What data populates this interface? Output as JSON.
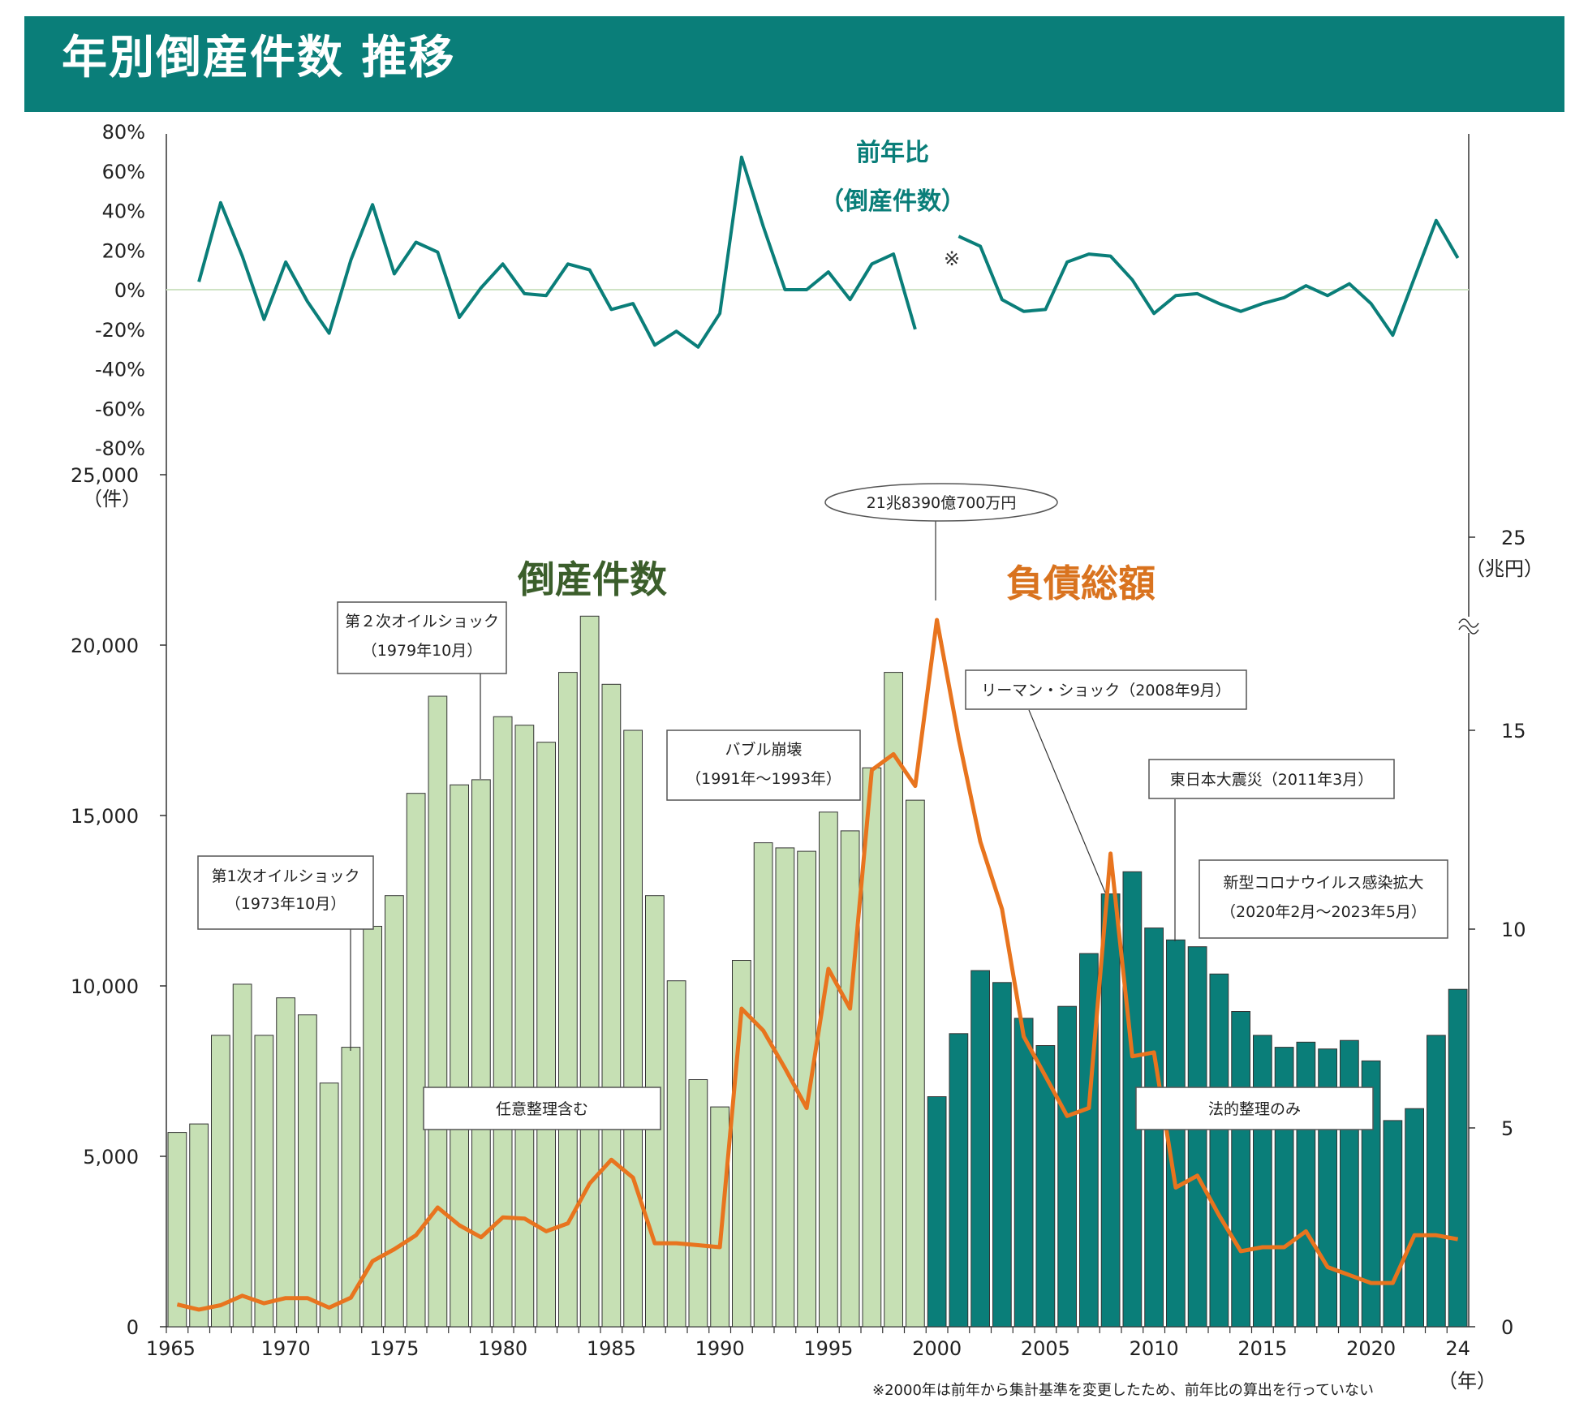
{
  "title": "年別倒産件数  推移",
  "colors": {
    "header_bg": "#0a7e79",
    "bar_before_2000": "#c6e0b4",
    "bar_from_2000": "#0a7e79",
    "debt_line": "#e8741e",
    "yoy_line": "#0a7e79"
  },
  "labels": {
    "count_series": "倒産件数",
    "debt_series": "負債総額",
    "yoy_title_1": "前年比",
    "yoy_title_2": "（倒産件数）",
    "yoy_mark": "※",
    "left_unit": "（件）",
    "right_unit": "（兆円）",
    "x_unit": "（年）",
    "footnote": "※2000年は前年から集計基準を変更したため、前年比の算出を行っていない"
  },
  "annotations": {
    "oil1_l1": "第1次オイルショック",
    "oil1_l2": "（1973年10月）",
    "oil2_l1": "第２次オイルショック",
    "oil2_l2": "（1979年10月）",
    "bubble_l1": "バブル崩壊",
    "bubble_l2": "（1991年～1993年）",
    "peak": "21兆8390億700万円",
    "lehman": "リーマン・ショック（2008年9月）",
    "quake": "東日本大震災（2011年3月）",
    "corona_l1": "新型コロナウイルス感染拡大",
    "corona_l2": "（2020年2月～2023年5月）",
    "voluntary": "任意整理含む",
    "legal": "法的整理のみ"
  },
  "axes": {
    "left_ticks": [
      "0",
      "5,000",
      "10,000",
      "15,000",
      "20,000",
      "25,000"
    ],
    "right_ticks": [
      "0",
      "5",
      "10",
      "15",
      "25"
    ],
    "pct_ticks": [
      "80%",
      "60%",
      "40%",
      "20%",
      "0%",
      "-20%",
      "-40%",
      "-60%",
      "-80%"
    ],
    "x_ticks": [
      "1965",
      "1970",
      "1975",
      "1980",
      "1985",
      "1990",
      "1995",
      "2000",
      "2005",
      "2010",
      "2015",
      "2020",
      "24"
    ]
  },
  "chart_data": [
    {
      "type": "bar",
      "name": "倒産件数",
      "x": [
        1965,
        1966,
        1967,
        1968,
        1969,
        1970,
        1971,
        1972,
        1973,
        1974,
        1975,
        1976,
        1977,
        1978,
        1979,
        1980,
        1981,
        1982,
        1983,
        1984,
        1985,
        1986,
        1987,
        1988,
        1989,
        1990,
        1991,
        1992,
        1993,
        1994,
        1995,
        1996,
        1997,
        1998,
        1999,
        2000,
        2001,
        2002,
        2003,
        2004,
        2005,
        2006,
        2007,
        2008,
        2009,
        2010,
        2011,
        2012,
        2013,
        2014,
        2015,
        2016,
        2017,
        2018,
        2019,
        2020,
        2021,
        2022,
        2023,
        2024
      ],
      "values": [
        5700,
        5950,
        8550,
        10050,
        8550,
        9650,
        9150,
        7150,
        8200,
        11750,
        12650,
        15650,
        18500,
        15900,
        16050,
        17900,
        17650,
        17150,
        19200,
        20850,
        18850,
        17500,
        12650,
        10150,
        7250,
        6450,
        10750,
        14200,
        14050,
        13950,
        15100,
        14550,
        16400,
        19200,
        15450,
        6750,
        8600,
        10450,
        10100,
        9050,
        8250,
        9400,
        10950,
        12700,
        13350,
        11700,
        11350,
        11150,
        10350,
        9250,
        8550,
        8200,
        8350,
        8150,
        8400,
        7800,
        6050,
        6400,
        8550,
        9900
      ],
      "ylim": [
        0,
        25000
      ],
      "ylabel": "（件）"
    },
    {
      "type": "line",
      "name": "負債総額",
      "x": [
        1965,
        1966,
        1967,
        1968,
        1969,
        1970,
        1971,
        1972,
        1973,
        1974,
        1975,
        1976,
        1977,
        1978,
        1979,
        1980,
        1981,
        1982,
        1983,
        1984,
        1985,
        1986,
        1987,
        1988,
        1989,
        1990,
        1991,
        1992,
        1993,
        1994,
        1995,
        1996,
        1997,
        1998,
        1999,
        2000,
        2001,
        2002,
        2003,
        2004,
        2005,
        2006,
        2007,
        2008,
        2009,
        2010,
        2011,
        2012,
        2013,
        2014,
        2015,
        2016,
        2017,
        2018,
        2019,
        2020,
        2021,
        2022,
        2023,
        2024
      ],
      "values": [
        0.56,
        0.43,
        0.54,
        0.78,
        0.59,
        0.72,
        0.72,
        0.48,
        0.73,
        1.65,
        1.95,
        2.3,
        3.0,
        2.55,
        2.25,
        2.75,
        2.72,
        2.4,
        2.6,
        3.6,
        4.2,
        3.75,
        2.1,
        2.1,
        2.05,
        2.0,
        8.0,
        7.45,
        6.5,
        5.5,
        9.0,
        8.0,
        14.0,
        14.4,
        13.6,
        21.8,
        14.8,
        12.2,
        10.5,
        7.3,
        6.3,
        5.3,
        5.5,
        11.9,
        6.8,
        6.9,
        3.5,
        3.8,
        2.8,
        1.9,
        2.0,
        2.0,
        2.4,
        1.5,
        1.3,
        1.1,
        1.1,
        2.3,
        2.3,
        2.2
      ],
      "ylabel": "（兆円）",
      "y_ticks": [
        0,
        5,
        10,
        15,
        25
      ],
      "axis_break_between": [
        15,
        25
      ]
    },
    {
      "type": "line",
      "name": "前年比（倒産件数）",
      "segments": [
        {
          "x": [
            1966,
            1967,
            1968,
            1969,
            1970,
            1971,
            1972,
            1973,
            1974,
            1975,
            1976,
            1977,
            1978,
            1979,
            1980,
            1981,
            1982,
            1983,
            1984,
            1985,
            1986,
            1987,
            1988,
            1989,
            1990,
            1991,
            1992,
            1993,
            1994,
            1995,
            1996,
            1997,
            1998,
            1999
          ],
          "values": [
            4,
            44,
            17,
            -15,
            14,
            -6,
            -22,
            15,
            43,
            8,
            24,
            19,
            -14,
            1,
            13,
            -2,
            -3,
            13,
            10,
            -10,
            -7,
            -28,
            -21,
            -29,
            -12,
            67,
            32,
            0,
            0,
            9,
            -5,
            13,
            18,
            -20
          ]
        },
        {
          "x": [
            2001,
            2002,
            2003,
            2004,
            2005,
            2006,
            2007,
            2008,
            2009,
            2010,
            2011,
            2012,
            2013,
            2014,
            2015,
            2016,
            2017,
            2018,
            2019,
            2020,
            2021,
            2022,
            2023,
            2024
          ],
          "values": [
            27,
            22,
            -5,
            -11,
            -10,
            14,
            18,
            17,
            5,
            -12,
            -3,
            -2,
            -7,
            -11,
            -7,
            -4,
            2,
            -3,
            3,
            -7,
            -23,
            6,
            35,
            16
          ]
        }
      ],
      "ylim": [
        -80,
        80
      ],
      "note": "※"
    }
  ]
}
